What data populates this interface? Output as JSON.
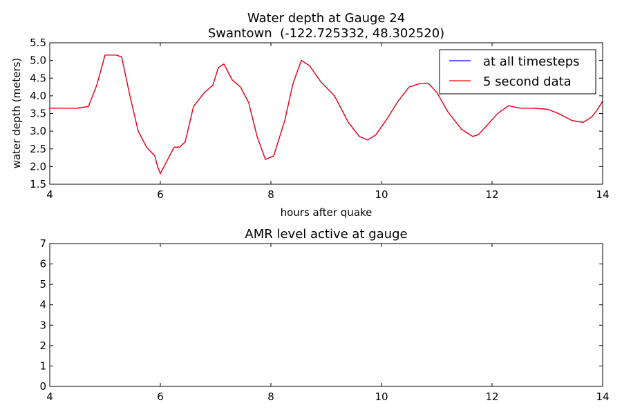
{
  "chart_data": [
    {
      "type": "line",
      "title": "Water depth at Gauge 24",
      "subtitle": "Swantown  (-122.725332, 48.302520)",
      "xlabel": "hours after quake",
      "ylabel": "water depth (meters)",
      "xlim": [
        4,
        14
      ],
      "ylim": [
        1.5,
        5.5
      ],
      "xticks": [
        "4",
        "6",
        "8",
        "10",
        "12",
        "14"
      ],
      "yticks": [
        "1.5",
        "2.0",
        "2.5",
        "3.0",
        "3.5",
        "4.0",
        "4.5",
        "5.0",
        "5.5"
      ],
      "grid": false,
      "legend": "top-right",
      "x": [
        4.0,
        4.5,
        4.7,
        4.85,
        5.0,
        5.2,
        5.3,
        5.45,
        5.6,
        5.75,
        5.9,
        5.95,
        6.0,
        6.1,
        6.25,
        6.35,
        6.45,
        6.6,
        6.8,
        6.95,
        7.05,
        7.15,
        7.3,
        7.45,
        7.6,
        7.75,
        7.9,
        8.05,
        8.25,
        8.4,
        8.55,
        8.7,
        8.9,
        9.15,
        9.4,
        9.6,
        9.75,
        9.9,
        10.1,
        10.3,
        10.5,
        10.7,
        10.85,
        11.0,
        11.2,
        11.45,
        11.65,
        11.75,
        11.9,
        12.1,
        12.3,
        12.5,
        12.75,
        13.0,
        13.2,
        13.45,
        13.65,
        13.8,
        13.9,
        14.0
      ],
      "series": [
        {
          "name": "at all timesteps",
          "color": "#0000ff",
          "values": [
            3.65,
            3.65,
            3.7,
            4.3,
            5.15,
            5.15,
            5.1,
            4.0,
            3.0,
            2.55,
            2.3,
            2.0,
            1.8,
            2.1,
            2.55,
            2.55,
            2.7,
            3.7,
            4.1,
            4.3,
            4.8,
            4.9,
            4.45,
            4.25,
            3.8,
            2.85,
            2.2,
            2.3,
            3.3,
            4.35,
            5.0,
            4.85,
            4.4,
            4.0,
            3.25,
            2.85,
            2.75,
            2.9,
            3.35,
            3.85,
            4.25,
            4.35,
            4.35,
            4.1,
            3.55,
            3.05,
            2.85,
            2.9,
            3.15,
            3.5,
            3.72,
            3.65,
            3.65,
            3.62,
            3.5,
            3.3,
            3.25,
            3.4,
            3.6,
            3.85
          ]
        },
        {
          "name": "5 second data",
          "color": "#ff0000",
          "values": [
            3.65,
            3.65,
            3.7,
            4.3,
            5.15,
            5.15,
            5.1,
            4.0,
            3.0,
            2.55,
            2.3,
            2.0,
            1.8,
            2.1,
            2.55,
            2.55,
            2.7,
            3.7,
            4.1,
            4.3,
            4.8,
            4.9,
            4.45,
            4.25,
            3.8,
            2.85,
            2.2,
            2.3,
            3.3,
            4.35,
            5.0,
            4.85,
            4.4,
            4.0,
            3.25,
            2.85,
            2.75,
            2.9,
            3.35,
            3.85,
            4.25,
            4.35,
            4.35,
            4.1,
            3.55,
            3.05,
            2.85,
            2.9,
            3.15,
            3.5,
            3.72,
            3.65,
            3.65,
            3.62,
            3.5,
            3.3,
            3.25,
            3.4,
            3.6,
            3.85
          ]
        }
      ]
    },
    {
      "type": "line",
      "title": "AMR level active at gauge",
      "xlabel": "",
      "ylabel": "",
      "xlim": [
        4,
        14
      ],
      "ylim": [
        0,
        7
      ],
      "xticks": [
        "4",
        "6",
        "8",
        "10",
        "12",
        "14"
      ],
      "yticks": [
        "0",
        "1",
        "2",
        "3",
        "4",
        "5",
        "6",
        "7"
      ],
      "grid": false,
      "series": []
    }
  ]
}
